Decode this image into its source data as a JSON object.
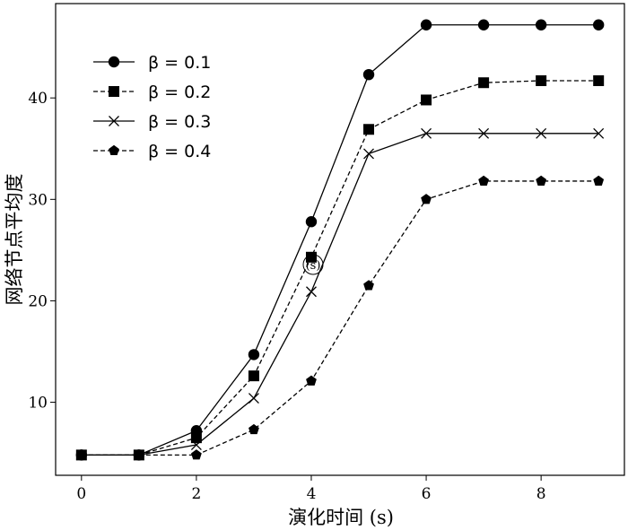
{
  "chart_data": {
    "type": "line",
    "xlabel": "演化时间 (s)",
    "ylabel": "网络节点平均度",
    "xlim": [
      -0.45,
      9.45
    ],
    "ylim": [
      2.8,
      49.3
    ],
    "xticks": [
      0,
      2,
      4,
      6,
      8
    ],
    "yticks": [
      10,
      20,
      30,
      40
    ],
    "grid": false,
    "legend_position": "upper-left",
    "x": [
      0,
      1,
      2,
      3,
      4,
      5,
      6,
      7,
      8,
      9
    ],
    "series": [
      {
        "name": "β = 0.1",
        "values": [
          4.8,
          4.8,
          7.2,
          14.7,
          27.8,
          42.3,
          47.2,
          47.2,
          47.2,
          47.2
        ],
        "marker": "circle",
        "linestyle": "solid"
      },
      {
        "name": "β = 0.2",
        "values": [
          4.8,
          4.8,
          6.5,
          12.6,
          24.3,
          36.9,
          39.8,
          41.5,
          41.7,
          41.7
        ],
        "marker": "square",
        "linestyle": "dashed"
      },
      {
        "name": "β = 0.3",
        "values": [
          4.8,
          4.8,
          5.8,
          10.4,
          20.9,
          34.5,
          36.5,
          36.5,
          36.5,
          36.5
        ],
        "marker": "x",
        "linestyle": "solid"
      },
      {
        "name": "β = 0.4",
        "values": [
          4.8,
          4.8,
          4.8,
          7.3,
          12.1,
          21.5,
          30.0,
          31.8,
          31.8,
          31.8
        ],
        "marker": "pentagon",
        "linestyle": "dashed"
      }
    ],
    "annotation": "(s)"
  }
}
